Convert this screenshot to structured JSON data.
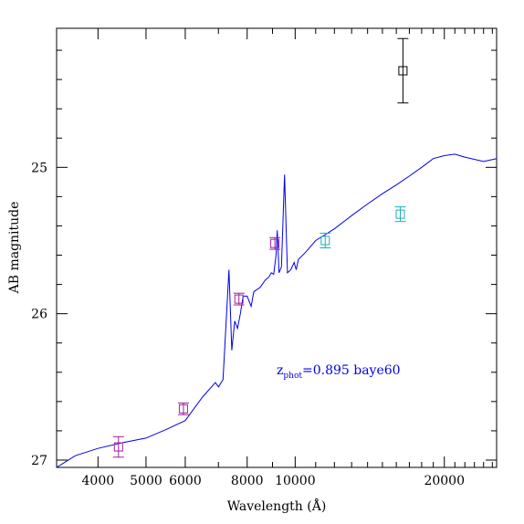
{
  "chart_data": {
    "type": "scatter",
    "title": "",
    "xlabel": "Wavelength (Å)",
    "ylabel": "AB magnitude",
    "x_scale": "log",
    "xlim": [
      3300,
      25500
    ],
    "ylim": [
      27.05,
      24.05
    ],
    "y_inverted": true,
    "grid": false,
    "x_ticks": [
      {
        "value": 4000,
        "label": "4000"
      },
      {
        "value": 5000,
        "label": "5000"
      },
      {
        "value": 6000,
        "label": "6000"
      },
      {
        "value": 8000,
        "label": "8000"
      },
      {
        "value": 10000,
        "label": "10000"
      },
      {
        "value": 20000,
        "label": "20000"
      }
    ],
    "y_ticks": [
      {
        "value": 25,
        "label": "25"
      },
      {
        "value": 26,
        "label": "26"
      },
      {
        "value": 27,
        "label": "27"
      }
    ],
    "annotation": {
      "prefix": "z",
      "subscript": "phot",
      "text": "=0.895 baye60"
    },
    "colors": {
      "sed": "#0000ee",
      "magenta": "#a020a0",
      "cyan": "#20b0b0",
      "black": "#000000"
    },
    "sed_curve": {
      "color": "#0000ee",
      "points": [
        [
          3300,
          27.05
        ],
        [
          3600,
          26.97
        ],
        [
          4000,
          26.92
        ],
        [
          4500,
          26.88
        ],
        [
          5000,
          26.85
        ],
        [
          5500,
          26.79
        ],
        [
          6000,
          26.73
        ],
        [
          6500,
          26.57
        ],
        [
          6900,
          26.47
        ],
        [
          7000,
          26.5
        ],
        [
          7150,
          26.45
        ],
        [
          7350,
          25.7
        ],
        [
          7450,
          26.25
        ],
        [
          7550,
          26.05
        ],
        [
          7650,
          26.1
        ],
        [
          7750,
          26.0
        ],
        [
          7850,
          25.88
        ],
        [
          8000,
          25.88
        ],
        [
          8150,
          25.95
        ],
        [
          8250,
          25.85
        ],
        [
          8500,
          25.82
        ],
        [
          8700,
          25.77
        ],
        [
          8850,
          25.75
        ],
        [
          8950,
          25.72
        ],
        [
          9050,
          25.73
        ],
        [
          9150,
          25.6
        ],
        [
          9200,
          25.43
        ],
        [
          9280,
          25.72
        ],
        [
          9380,
          25.68
        ],
        [
          9520,
          25.05
        ],
        [
          9650,
          25.72
        ],
        [
          9800,
          25.7
        ],
        [
          9950,
          25.65
        ],
        [
          10050,
          25.7
        ],
        [
          10150,
          25.63
        ],
        [
          10500,
          25.58
        ],
        [
          11000,
          25.5
        ],
        [
          12000,
          25.42
        ],
        [
          13000,
          25.33
        ],
        [
          14000,
          25.25
        ],
        [
          15000,
          25.18
        ],
        [
          16000,
          25.12
        ],
        [
          17000,
          25.06
        ],
        [
          18000,
          25.0
        ],
        [
          19000,
          24.94
        ],
        [
          20000,
          24.92
        ],
        [
          21000,
          24.91
        ],
        [
          22000,
          24.93
        ],
        [
          24000,
          24.96
        ],
        [
          25500,
          24.94
        ]
      ]
    },
    "series": [
      {
        "color": "#a020a0",
        "points": [
          {
            "x": 4400,
            "y": 26.91,
            "err": 0.07
          },
          {
            "x": 5950,
            "y": 26.65,
            "err": 0.04
          },
          {
            "x": 7700,
            "y": 25.9,
            "err": 0.04
          },
          {
            "x": 9100,
            "y": 25.52,
            "err": 0.04
          }
        ]
      },
      {
        "color": "#20b0b0",
        "points": [
          {
            "x": 11500,
            "y": 25.5,
            "err": 0.05
          },
          {
            "x": 16300,
            "y": 25.32,
            "err": 0.05
          }
        ]
      },
      {
        "color": "#000000",
        "points": [
          {
            "x": 16500,
            "y": 24.34,
            "err": 0.22
          }
        ]
      }
    ]
  }
}
